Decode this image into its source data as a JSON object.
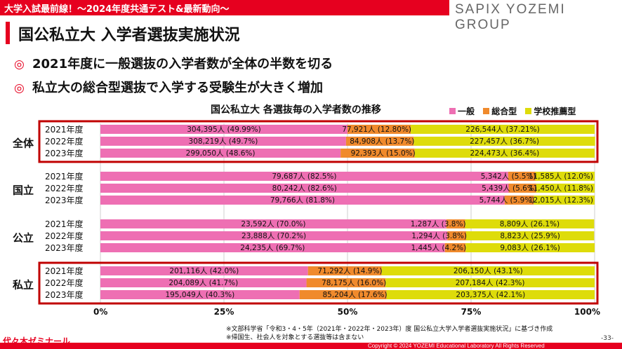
{
  "header": {
    "banner": "大学入試最前線！〜2024年度共通テスト&最新動向〜",
    "brand": "SAPIX YOZEMI GROUP"
  },
  "page_title": "国公私立大 入学者選抜実施状況",
  "bullets": [
    "2021年度に一般選抜の入学者数が全体の半数を切る",
    "私立大の総合型選抜で入学する受験生が大きく増加"
  ],
  "bullet_mark": "◎",
  "chart_data": {
    "type": "bar",
    "stacked": "percent",
    "orientation": "horizontal",
    "title": "国公私立大 各選抜毎の入学者数の推移",
    "legend_position": "top-right",
    "xlim": [
      0,
      100
    ],
    "x_ticks": [
      "0%",
      "25%",
      "50%",
      "75%",
      "100%"
    ],
    "colors": {
      "一般": "#ee6fb3",
      "総合型": "#f08a2c",
      "学校推薦型": "#dedc0a",
      "highlight": "#c00000"
    },
    "series": [
      {
        "name": "一般"
      },
      {
        "name": "総合型"
      },
      {
        "name": "学校推薦型"
      }
    ],
    "groups": [
      {
        "name": "全体",
        "highlight": true,
        "rows": [
          {
            "year": "2021年度",
            "values": [
              49.99,
              12.8,
              37.21
            ],
            "labels": [
              "304,395人 (49.99%)",
              "77,921人 (12.80%)",
              "226,544人 (37.21%)"
            ]
          },
          {
            "year": "2022年度",
            "values": [
              49.7,
              13.7,
              36.7
            ],
            "labels": [
              "308,219人 (49.7%)",
              "84,908人 (13.7%)",
              "227,457人 (36.7%)"
            ]
          },
          {
            "year": "2023年度",
            "values": [
              48.6,
              15.0,
              36.4
            ],
            "labels": [
              "299,050人 (48.6%)",
              "92,393人 (15.0%)",
              "224,473人 (36.4%)"
            ]
          }
        ]
      },
      {
        "name": "国立",
        "highlight": false,
        "rows": [
          {
            "year": "2021年度",
            "values": [
              82.5,
              5.5,
              12.0
            ],
            "labels": [
              "79,687人 (82.5%)",
              "5,342人 (5.5%)",
              "11,585人 (12.0%)"
            ]
          },
          {
            "year": "2022年度",
            "values": [
              82.6,
              5.6,
              11.8
            ],
            "labels": [
              "80,242人 (82.6%)",
              "5,439人 (5.6%)",
              "11,450人 (11.8%)"
            ]
          },
          {
            "year": "2023年度",
            "values": [
              81.8,
              5.9,
              12.3
            ],
            "labels": [
              "79,766人 (81.8%)",
              "5,744人 (5.9%)",
              "12,015人 (12.3%)"
            ]
          }
        ]
      },
      {
        "name": "公立",
        "highlight": false,
        "rows": [
          {
            "year": "2021年度",
            "values": [
              70.0,
              3.8,
              26.1
            ],
            "labels": [
              "23,592人 (70.0%)",
              "1,287人 (3.8%)",
              "8,809人 (26.1%)"
            ]
          },
          {
            "year": "2022年度",
            "values": [
              70.2,
              3.8,
              25.9
            ],
            "labels": [
              "23,888人 (70.2%)",
              "1,294人 (3.8%)",
              "8,823人 (25.9%)"
            ]
          },
          {
            "year": "2023年度",
            "values": [
              69.7,
              4.2,
              26.1
            ],
            "labels": [
              "24,235人 (69.7%)",
              "1,445人 (4.2%)",
              "9,083人 (26.1%)"
            ]
          }
        ]
      },
      {
        "name": "私立",
        "highlight": true,
        "rows": [
          {
            "year": "2021年度",
            "values": [
              42.0,
              14.9,
              43.1
            ],
            "labels": [
              "201,116人 (42.0%)",
              "71,292人 (14.9%)",
              "206,150人 (43.1%)"
            ]
          },
          {
            "year": "2022年度",
            "values": [
              41.7,
              16.0,
              42.3
            ],
            "labels": [
              "204,089人 (41.7%)",
              "78,175人 (16.0%)",
              "207,184人 (42.3%)"
            ]
          },
          {
            "year": "2023年度",
            "values": [
              40.3,
              17.6,
              42.1
            ],
            "labels": [
              "195,049人 (40.3%)",
              "85,204人 (17.6%)",
              "203,375人 (42.1%)"
            ]
          }
        ]
      }
    ]
  },
  "footnotes": [
    "※文部科学省「令和3・4・5年（2021年・2022年・2023年）度 国公私立大学入学者選抜実施状況」に基づき作成",
    "※帰国生、社会人を対象とする選抜等は含まない"
  ],
  "footer": {
    "logo": "代々木ゼミナール",
    "copyright": "Copyright © 2024 YOZEMI Educational Laboratory All Rights Reserved",
    "page_number": "-33-"
  }
}
